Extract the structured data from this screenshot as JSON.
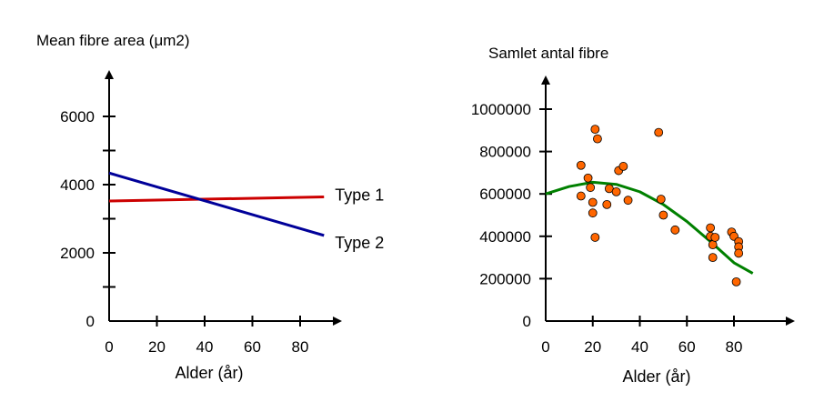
{
  "chart_data": [
    {
      "type": "line",
      "title": "Mean fibre area (μm2)",
      "xlabel": "Alder (år)",
      "ylabel": "",
      "xlim": [
        0,
        90
      ],
      "ylim": [
        0,
        7000
      ],
      "x_ticks": [
        0,
        20,
        40,
        60,
        80
      ],
      "y_ticks": [
        0,
        2000,
        4000,
        6000
      ],
      "y_minor_ticks": [
        1000,
        3000,
        5000
      ],
      "grid": false,
      "legend": "labels at line ends (right)",
      "series": [
        {
          "name": "Type 1",
          "color": "#cc0000",
          "x": [
            0,
            90
          ],
          "y": [
            3520,
            3640
          ]
        },
        {
          "name": "Type 2",
          "color": "#000099",
          "x": [
            0,
            90
          ],
          "y": [
            4340,
            2510
          ]
        }
      ]
    },
    {
      "type": "scatter",
      "title": "Samlet antal fibre",
      "xlabel": "Alder (år)",
      "ylabel": "",
      "xlim": [
        0,
        105
      ],
      "ylim": [
        0,
        1150000
      ],
      "x_ticks": [
        0,
        20,
        40,
        60,
        80
      ],
      "y_ticks": [
        0,
        200000,
        400000,
        600000,
        800000,
        1000000
      ],
      "grid": false,
      "point_color": "#ff6600",
      "curve_color": "#008000",
      "series": [
        {
          "name": "",
          "x": [
            15,
            15,
            18,
            19,
            20,
            20,
            21,
            21,
            22,
            26,
            27,
            30,
            31,
            33,
            35,
            48,
            49,
            50,
            55,
            70,
            70,
            71,
            71,
            72,
            79,
            80,
            82,
            82,
            82,
            81
          ],
          "y": [
            735000,
            590000,
            675000,
            630000,
            560000,
            510000,
            905000,
            395000,
            860000,
            550000,
            625000,
            610000,
            710000,
            730000,
            570000,
            890000,
            575000,
            500000,
            430000,
            400000,
            440000,
            360000,
            300000,
            395000,
            420000,
            400000,
            375000,
            350000,
            320000,
            185000
          ]
        }
      ],
      "trend": {
        "type": "quadratic",
        "x": [
          0,
          10,
          20,
          30,
          40,
          50,
          60,
          70,
          80,
          88
        ],
        "y": [
          600000,
          635000,
          655000,
          645000,
          610000,
          550000,
          470000,
          375000,
          275000,
          225000
        ]
      }
    }
  ]
}
